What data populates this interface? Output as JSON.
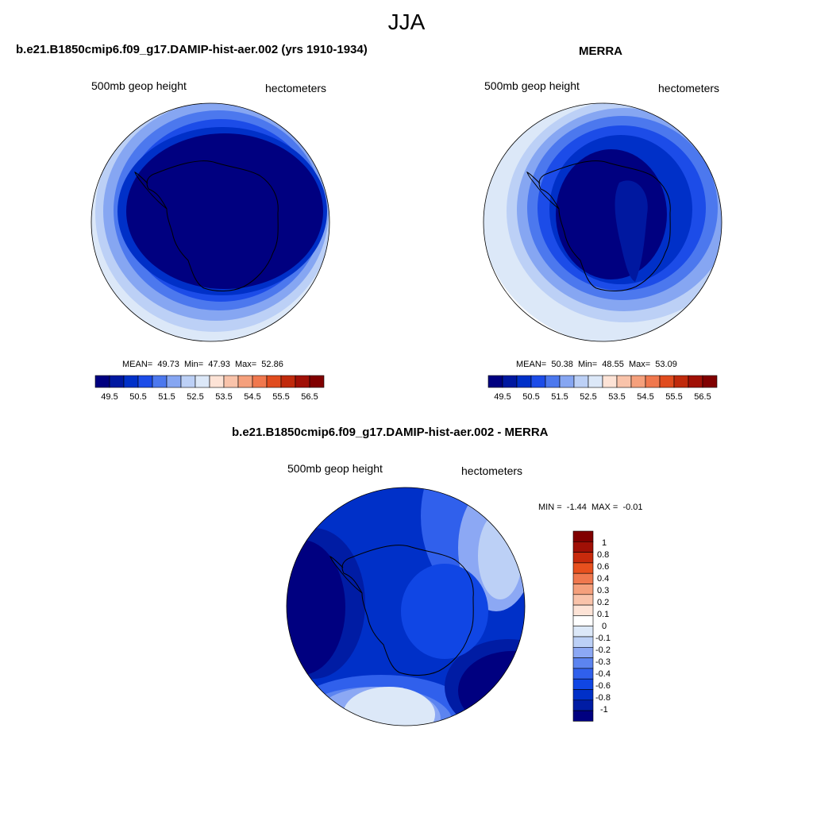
{
  "figure": {
    "title": "JJA"
  },
  "colors": {
    "model_scale": [
      "#000080",
      "#0018a0",
      "#0030c8",
      "#1c4ce8",
      "#4c78ee",
      "#86a6f2",
      "#bcd0f6",
      "#dce8f8",
      "#fde3d6",
      "#f9c3aa",
      "#f5a07c",
      "#f0784e",
      "#e04c1e",
      "#c02a0c",
      "#a01006",
      "#800000"
    ],
    "diff_scale": [
      "#000080",
      "#001ca4",
      "#0030c8",
      "#1046e4",
      "#3060ec",
      "#5c84f0",
      "#8ca8f4",
      "#bcd0f6",
      "#dce8f8",
      "#ffffff",
      "#fde3d6",
      "#f9c3aa",
      "#f5a07c",
      "#f0784e",
      "#e8501e",
      "#c82a0c",
      "#a01006",
      "#800000"
    ],
    "coast": "#000000"
  },
  "panels": [
    {
      "id": "model",
      "title": "b.e21.B1850cmip6.f09_g17.DAMIP-hist-aer.002 (yrs 1910-1934)",
      "variable": "500mb geop height",
      "units": "hectometers",
      "stats": {
        "mean_label": "MEAN=",
        "mean": "49.73",
        "min_label": "Min=",
        "min": "47.93",
        "max_label": "Max=",
        "max": "52.86"
      },
      "colorbar_ticks": [
        "49.5",
        "50.5",
        "51.5",
        "52.5",
        "53.5",
        "54.5",
        "55.5",
        "56.5"
      ]
    },
    {
      "id": "obs",
      "title": "MERRA",
      "variable": "500mb geop height",
      "units": "hectometers",
      "stats": {
        "mean_label": "MEAN=",
        "mean": "50.38",
        "min_label": "Min=",
        "min": "48.55",
        "max_label": "Max=",
        "max": "53.09"
      },
      "colorbar_ticks": [
        "49.5",
        "50.5",
        "51.5",
        "52.5",
        "53.5",
        "54.5",
        "55.5",
        "56.5"
      ]
    },
    {
      "id": "diff",
      "title": "b.e21.B1850cmip6.f09_g17.DAMIP-hist-aer.002 - MERRA",
      "variable": "500mb geop height",
      "units": "hectometers",
      "stats": {
        "min_label": "MIN =",
        "min": "-1.44",
        "max_label": "MAX =",
        "max": "-0.01"
      },
      "colorbar_ticks": [
        "1",
        "0.8",
        "0.6",
        "0.4",
        "0.3",
        "0.2",
        "0.1",
        "0",
        "-0.1",
        "-0.2",
        "-0.3",
        "-0.4",
        "-0.6",
        "-0.8",
        "-1"
      ]
    }
  ]
}
